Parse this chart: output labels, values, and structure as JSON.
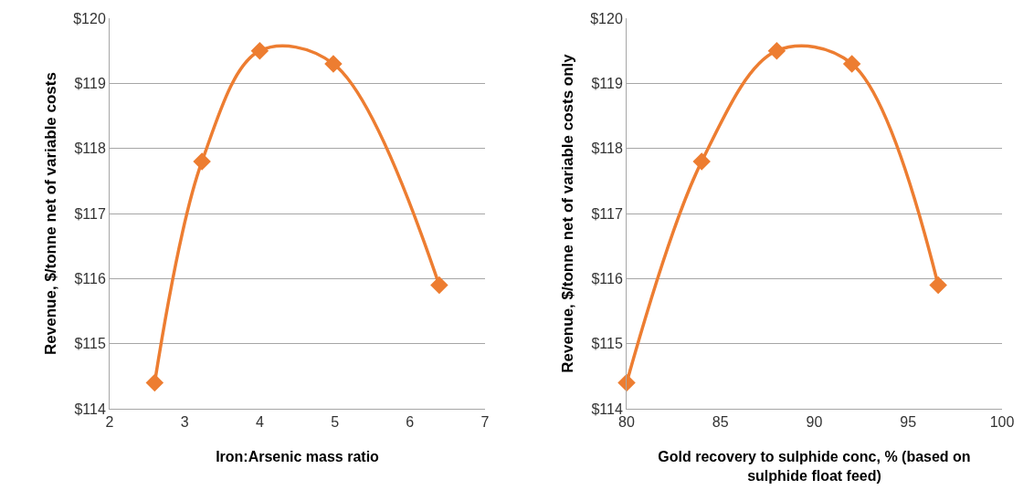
{
  "chart_data": [
    {
      "type": "line",
      "xlabel": "Iron:Arsenic mass ratio",
      "ylabel": "Revenue, $/tonne net of variable costs",
      "x": [
        2.6,
        3.23,
        4.0,
        4.98,
        6.39
      ],
      "series": [
        {
          "color": "#ed7d31",
          "values": [
            114.4,
            117.8,
            119.5,
            119.3,
            115.9
          ]
        }
      ],
      "xlim": [
        2,
        7
      ],
      "xticks": [
        2,
        3,
        4,
        5,
        6,
        7
      ],
      "ylim": [
        114,
        120
      ],
      "yticks": [
        {
          "value": 114,
          "label": "$114"
        },
        {
          "value": 115,
          "label": "$115"
        },
        {
          "value": 116,
          "label": "$116"
        },
        {
          "value": 117,
          "label": "$117"
        },
        {
          "value": 118,
          "label": "$118"
        },
        {
          "value": 119,
          "label": "$119"
        },
        {
          "value": 120,
          "label": "$120"
        }
      ],
      "grid": "y",
      "marker": "diamond",
      "line_style": "solid"
    },
    {
      "type": "line",
      "xlabel": "Gold recovery to sulphide conc, % (based on sulphide float feed)",
      "ylabel": "Revenue, $/tonne net of variable costs only",
      "x": [
        80,
        84,
        88,
        92,
        96.6
      ],
      "series": [
        {
          "color": "#ed7d31",
          "values": [
            114.4,
            117.8,
            119.5,
            119.3,
            115.9
          ]
        }
      ],
      "xlim": [
        80,
        100
      ],
      "xticks": [
        80,
        85,
        90,
        95,
        100
      ],
      "ylim": [
        114,
        120
      ],
      "yticks": [
        {
          "value": 114,
          "label": "$114"
        },
        {
          "value": 115,
          "label": "$115"
        },
        {
          "value": 116,
          "label": "$116"
        },
        {
          "value": 117,
          "label": "$117"
        },
        {
          "value": 118,
          "label": "$118"
        },
        {
          "value": 119,
          "label": "$119"
        },
        {
          "value": 120,
          "label": "$120"
        }
      ],
      "grid": "y",
      "marker": "diamond",
      "line_style": "solid"
    }
  ]
}
